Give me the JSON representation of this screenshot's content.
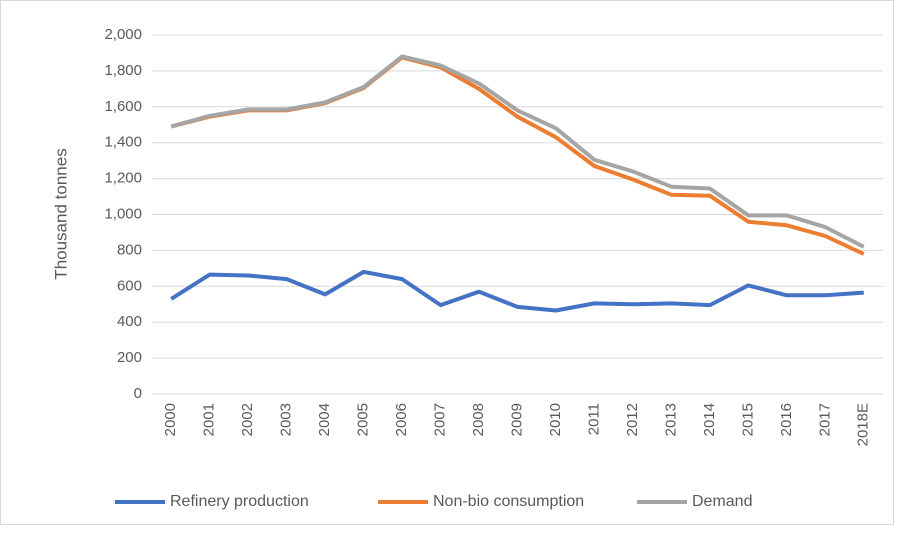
{
  "chart_data": {
    "type": "line",
    "y_label": "Thousand tonnes",
    "categories": [
      "2000",
      "2001",
      "2002",
      "2003",
      "2004",
      "2005",
      "2006",
      "2007",
      "2008",
      "2009",
      "2010",
      "2011",
      "2012",
      "2013",
      "2014",
      "2015",
      "2016",
      "2017",
      "2018E"
    ],
    "series": [
      {
        "name": "Refinery production",
        "color": "#4472c4",
        "values": [
          530,
          665,
          660,
          640,
          555,
          680,
          640,
          495,
          570,
          485,
          465,
          505,
          500,
          505,
          495,
          605,
          550,
          550,
          565
        ]
      },
      {
        "name": "Non-bio consumption",
        "color": "#ed7d31",
        "values": [
          1490,
          1545,
          1580,
          1580,
          1620,
          1705,
          1875,
          1820,
          1700,
          1545,
          1430,
          1270,
          1195,
          1110,
          1105,
          960,
          940,
          880,
          780
        ]
      },
      {
        "name": "Demand",
        "color": "#a5a5a5",
        "values": [
          1490,
          1550,
          1585,
          1585,
          1625,
          1710,
          1880,
          1830,
          1730,
          1580,
          1480,
          1305,
          1240,
          1155,
          1145,
          995,
          995,
          930,
          820
        ]
      }
    ],
    "ylim": [
      0,
      2000
    ],
    "yticks": [
      0,
      200,
      400,
      600,
      800,
      {
        "value": 1000,
        "label": "1,000"
      },
      {
        "value": 1200,
        "label": "1,200"
      },
      {
        "value": 1400,
        "label": "1,400"
      },
      {
        "value": 1600,
        "label": "1,600"
      },
      {
        "value": 1800,
        "label": "1,800"
      },
      {
        "value": 2000,
        "label": "2,000"
      }
    ],
    "grid": true,
    "legend": "bottom"
  }
}
